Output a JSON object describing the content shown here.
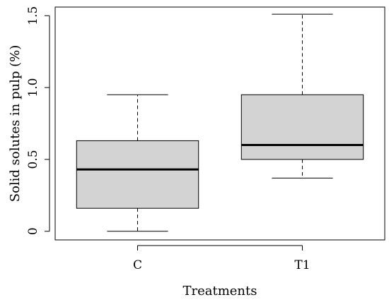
{
  "chart_data": {
    "type": "box",
    "title": "",
    "xlabel": "Treatments",
    "ylabel": "Solid solutes in pulp (%)",
    "categories": [
      "C",
      "T1"
    ],
    "y_ticks": [
      "0",
      "0.5",
      "1.0",
      "1.5"
    ],
    "y_tick_values": [
      0,
      0.5,
      1.0,
      1.5
    ],
    "ylim": [
      -0.06,
      1.56
    ],
    "grid": false,
    "boxes": [
      {
        "name": "C",
        "whisker_low": 0.0,
        "q1": 0.16,
        "median": 0.43,
        "q3": 0.63,
        "whisker_high": 0.95
      },
      {
        "name": "T1",
        "whisker_low": 0.37,
        "q1": 0.5,
        "median": 0.6,
        "q3": 0.95,
        "whisker_high": 1.51
      }
    ],
    "colors": {
      "box_fill": "#d3d3d3",
      "stroke": "#000000"
    }
  }
}
